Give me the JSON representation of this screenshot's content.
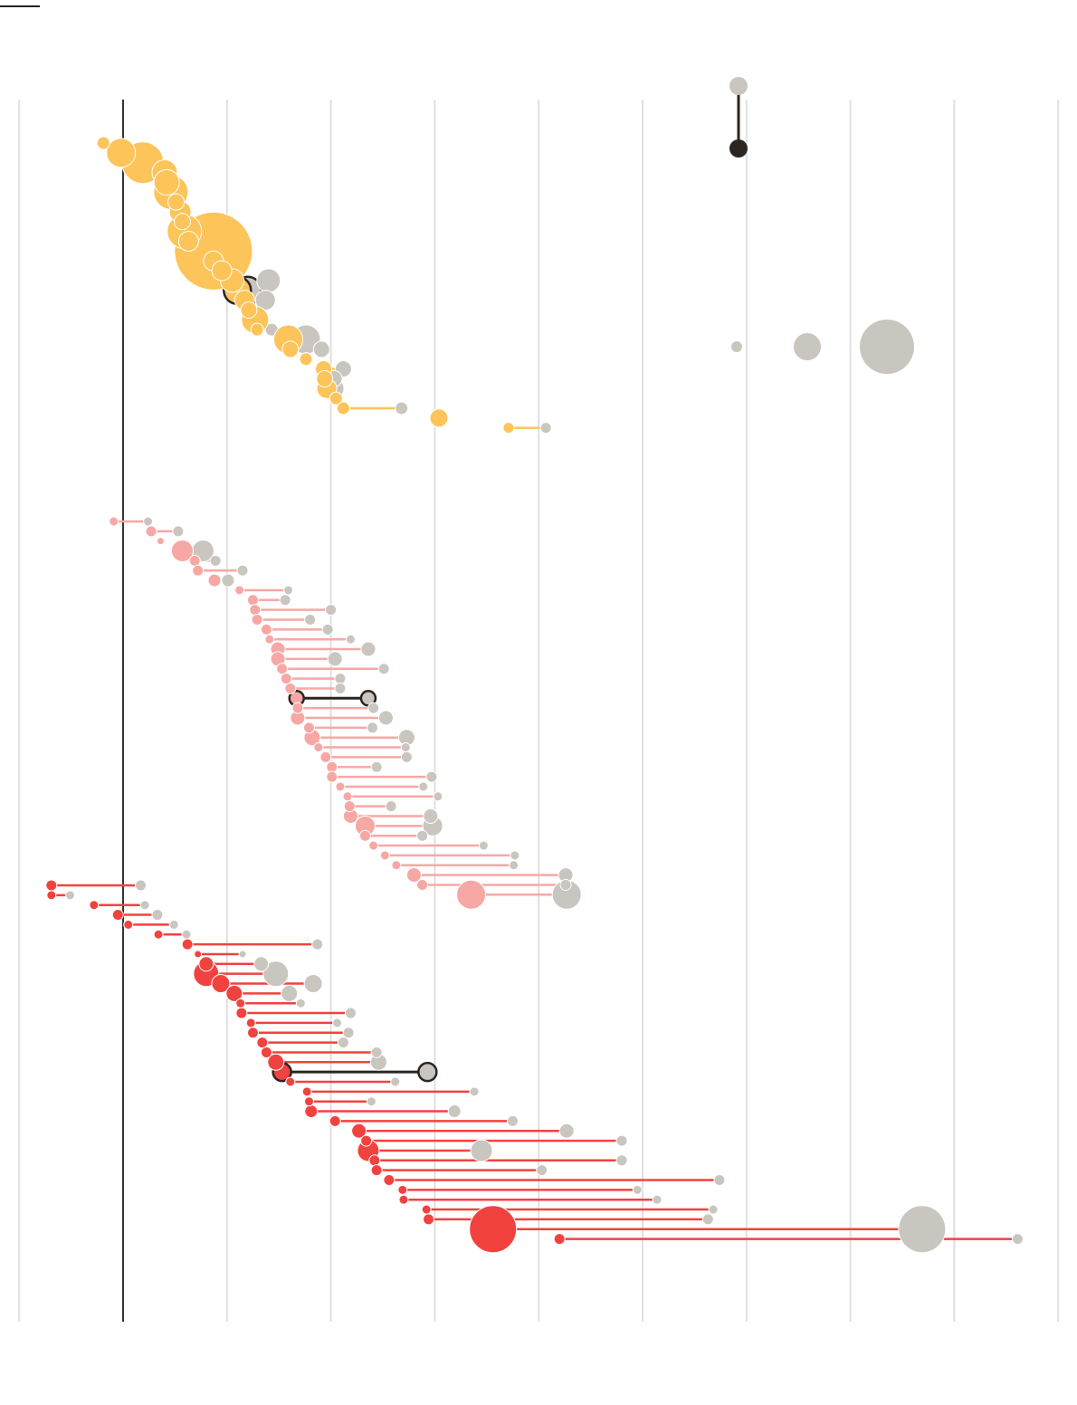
{
  "chart_data": {
    "type": "scatter",
    "title": "",
    "xlabel": "",
    "ylabel": "",
    "xlim": [
      -1,
      9
    ],
    "grid": true,
    "zero_line_x": 0,
    "colors": {
      "before": "#c9c6c0",
      "group_yellow": "#fdc45a",
      "group_pink": "#f7a8a4",
      "group_red": "#f2423f",
      "highlight_stroke": "#2b2522",
      "grid": "#e0e0e0",
      "zero_line": "#333333"
    },
    "legend": {
      "placement": "top-right",
      "connector_marks": [
        "before-dot",
        "after-dot"
      ],
      "size_marks": [
        "small",
        "medium",
        "large"
      ]
    },
    "series": [
      {
        "group": "yellow",
        "rows": [
          {
            "after": -0.19,
            "before": -0.19,
            "r": 7
          },
          {
            "after": -0.02,
            "before": -0.02,
            "r": 16
          },
          {
            "after": 0.19,
            "before": 0.19,
            "r": 23
          },
          {
            "after": 0.4,
            "before": 0.4,
            "r": 14
          },
          {
            "after": 0.42,
            "before": 0.42,
            "r": 14
          },
          {
            "after": 0.46,
            "before": 0.46,
            "r": 19
          },
          {
            "after": 0.51,
            "before": 0.51,
            "r": 9
          },
          {
            "after": 0.55,
            "before": 0.55,
            "r": 12
          },
          {
            "after": 0.57,
            "before": 0.57,
            "r": 9
          },
          {
            "after": 0.59,
            "before": 0.59,
            "r": 19
          },
          {
            "after": 0.63,
            "before": 0.63,
            "r": 11
          },
          {
            "after": 0.87,
            "before": 0.87,
            "r": 43
          },
          {
            "after": 0.87,
            "before": 0.87,
            "r": 11
          },
          {
            "after": 0.95,
            "before": 0.95,
            "r": 11
          },
          {
            "after": 1.05,
            "before": 1.4,
            "r": 13
          },
          {
            "after": 1.1,
            "before": 1.2,
            "r": 15,
            "highlight": true
          },
          {
            "after": 1.17,
            "before": 1.37,
            "r": 11
          },
          {
            "after": 1.21,
            "before": 1.21,
            "r": 9
          },
          {
            "after": 1.27,
            "before": 1.27,
            "r": 15
          },
          {
            "after": 1.29,
            "before": 1.43,
            "r": 7
          },
          {
            "after": 1.59,
            "before": 1.76,
            "r": 16
          },
          {
            "after": 1.61,
            "before": 1.91,
            "r": 9
          },
          {
            "after": 1.76,
            "before": 1.76,
            "r": 7
          },
          {
            "after": 1.93,
            "before": 2.12,
            "r": 9
          },
          {
            "after": 1.94,
            "before": 2.03,
            "r": 9
          },
          {
            "after": 1.96,
            "before": 2.03,
            "r": 11
          },
          {
            "after": 2.05,
            "before": 2.05,
            "r": 7
          },
          {
            "after": 2.12,
            "before": 2.68,
            "r": 7
          },
          {
            "after": 3.04,
            "before": 3.04,
            "r": 10
          },
          {
            "after": 3.71,
            "before": 4.07,
            "r": 6
          }
        ]
      },
      {
        "group": "pink",
        "rows": [
          {
            "after": -0.09,
            "before": 0.24,
            "r": 5
          },
          {
            "after": 0.27,
            "before": 0.53,
            "r": 6
          },
          {
            "after": 0.36,
            "before": 0.36,
            "r": 4
          },
          {
            "after": 0.57,
            "before": 0.77,
            "r": 12
          },
          {
            "after": 0.69,
            "before": 0.89,
            "r": 6
          },
          {
            "after": 0.72,
            "before": 1.15,
            "r": 6
          },
          {
            "after": 0.88,
            "before": 1.01,
            "r": 7
          },
          {
            "after": 1.12,
            "before": 1.59,
            "r": 5
          },
          {
            "after": 1.25,
            "before": 1.56,
            "r": 6
          },
          {
            "after": 1.27,
            "before": 2.0,
            "r": 6
          },
          {
            "after": 1.29,
            "before": 1.8,
            "r": 6
          },
          {
            "after": 1.38,
            "before": 1.97,
            "r": 6
          },
          {
            "after": 1.41,
            "before": 2.19,
            "r": 5
          },
          {
            "after": 1.49,
            "before": 2.36,
            "r": 8
          },
          {
            "after": 1.49,
            "before": 2.04,
            "r": 8
          },
          {
            "after": 1.53,
            "before": 2.51,
            "r": 6
          },
          {
            "after": 1.57,
            "before": 2.09,
            "r": 6
          },
          {
            "after": 1.61,
            "before": 2.09,
            "r": 6
          },
          {
            "after": 1.67,
            "before": 2.36,
            "r": 8,
            "highlight": true
          },
          {
            "after": 1.68,
            "before": 2.41,
            "r": 6
          },
          {
            "after": 1.68,
            "before": 2.53,
            "r": 8
          },
          {
            "after": 1.79,
            "before": 2.4,
            "r": 6
          },
          {
            "after": 1.82,
            "before": 2.73,
            "r": 9
          },
          {
            "after": 1.88,
            "before": 2.72,
            "r": 5
          },
          {
            "after": 1.95,
            "before": 2.73,
            "r": 6
          },
          {
            "after": 2.01,
            "before": 2.44,
            "r": 6
          },
          {
            "after": 2.01,
            "before": 2.97,
            "r": 6
          },
          {
            "after": 2.09,
            "before": 2.89,
            "r": 5
          },
          {
            "after": 2.16,
            "before": 3.03,
            "r": 5
          },
          {
            "after": 2.18,
            "before": 2.58,
            "r": 6
          },
          {
            "after": 2.19,
            "before": 2.96,
            "r": 8
          },
          {
            "after": 2.33,
            "before": 2.98,
            "r": 11
          },
          {
            "after": 2.33,
            "before": 2.88,
            "r": 6
          },
          {
            "after": 2.41,
            "before": 3.47,
            "r": 5
          },
          {
            "after": 2.52,
            "before": 3.77,
            "r": 5
          },
          {
            "after": 2.63,
            "before": 3.76,
            "r": 5
          },
          {
            "after": 2.8,
            "before": 4.26,
            "r": 8
          },
          {
            "after": 2.88,
            "before": 4.26,
            "r": 6
          },
          {
            "after": 3.35,
            "before": 4.27,
            "r": 16
          }
        ]
      },
      {
        "group": "red",
        "rows": [
          {
            "after": -0.69,
            "before": 0.17,
            "r": 6
          },
          {
            "after": -0.69,
            "before": -0.51,
            "r": 5
          },
          {
            "after": -0.28,
            "before": 0.21,
            "r": 5
          },
          {
            "after": -0.05,
            "before": 0.33,
            "r": 6
          },
          {
            "after": 0.05,
            "before": 0.49,
            "r": 5
          },
          {
            "after": 0.34,
            "before": 0.61,
            "r": 5
          },
          {
            "after": 0.62,
            "before": 1.87,
            "r": 6
          },
          {
            "after": 0.72,
            "before": 1.15,
            "r": 4
          },
          {
            "after": 0.8,
            "before": 1.33,
            "r": 8
          },
          {
            "after": 0.8,
            "before": 1.47,
            "r": 14
          },
          {
            "after": 0.94,
            "before": 1.83,
            "r": 10
          },
          {
            "after": 1.07,
            "before": 1.6,
            "r": 9
          },
          {
            "after": 1.13,
            "before": 1.71,
            "r": 5
          },
          {
            "after": 1.14,
            "before": 2.19,
            "r": 6
          },
          {
            "after": 1.23,
            "before": 2.06,
            "r": 5
          },
          {
            "after": 1.25,
            "before": 2.17,
            "r": 6
          },
          {
            "after": 1.34,
            "before": 2.12,
            "r": 6
          },
          {
            "after": 1.38,
            "before": 2.44,
            "r": 6
          },
          {
            "after": 1.47,
            "before": 2.46,
            "r": 9
          },
          {
            "after": 1.53,
            "before": 2.93,
            "r": 10,
            "highlight": true
          },
          {
            "after": 1.61,
            "before": 2.62,
            "r": 5
          },
          {
            "after": 1.77,
            "before": 3.38,
            "r": 5
          },
          {
            "after": 1.79,
            "before": 2.39,
            "r": 5
          },
          {
            "after": 1.81,
            "before": 3.19,
            "r": 7
          },
          {
            "after": 2.04,
            "before": 3.75,
            "r": 6
          },
          {
            "after": 2.27,
            "before": 4.27,
            "r": 8
          },
          {
            "after": 2.34,
            "before": 4.8,
            "r": 6
          },
          {
            "after": 2.36,
            "before": 3.45,
            "r": 12
          },
          {
            "after": 2.42,
            "before": 4.8,
            "r": 6
          },
          {
            "after": 2.44,
            "before": 4.03,
            "r": 6
          },
          {
            "after": 2.56,
            "before": 5.74,
            "r": 6
          },
          {
            "after": 2.69,
            "before": 4.95,
            "r": 5
          },
          {
            "after": 2.7,
            "before": 5.14,
            "r": 5
          },
          {
            "after": 2.92,
            "before": 5.68,
            "r": 5
          },
          {
            "after": 2.94,
            "before": 5.63,
            "r": 6
          },
          {
            "after": 3.56,
            "before": 7.69,
            "r": 26
          },
          {
            "after": 4.2,
            "before": 8.61,
            "r": 6
          }
        ]
      }
    ]
  }
}
